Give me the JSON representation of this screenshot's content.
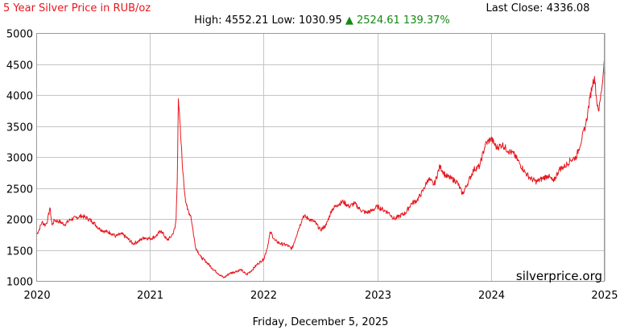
{
  "chart_data": {
    "type": "line",
    "title": "5 Year Silver Price in RUB/oz",
    "summary": {
      "high_label": "High:",
      "high": "4552.21",
      "low_label": "Low:",
      "low": "1030.95",
      "change_arrow": "▲",
      "change": "2524.61",
      "change_pct": "139.37%",
      "last_close_label": "Last Close:",
      "last_close": "4336.08"
    },
    "watermark": "silverprice.org",
    "date_label": "Friday, December 5, 2025",
    "xlim": [
      2020,
      2025
    ],
    "ylim": [
      1000,
      5000
    ],
    "x_ticks": [
      "2020",
      "2021",
      "2022",
      "2023",
      "2024",
      "2025"
    ],
    "y_ticks": [
      "1000",
      "1500",
      "2000",
      "2500",
      "3000",
      "3500",
      "4000",
      "4500",
      "5000"
    ],
    "grid": true,
    "line_color": "#e8161e",
    "series": [
      {
        "x": [
          2020.0,
          2020.02,
          2020.05,
          2020.08,
          2020.1,
          2020.12,
          2020.14,
          2020.16,
          2020.2,
          2020.25,
          2020.3,
          2020.35,
          2020.4,
          2020.45,
          2020.5,
          2020.55,
          2020.6,
          2020.65,
          2020.7,
          2020.75,
          2020.8,
          2020.85,
          2020.9,
          2020.95,
          2021.0,
          2021.05,
          2021.1,
          2021.15,
          2021.18,
          2021.2,
          2021.22,
          2021.23,
          2021.24,
          2021.25,
          2021.27,
          2021.29,
          2021.31,
          2021.33,
          2021.36,
          2021.38,
          2021.4,
          2021.45,
          2021.5,
          2021.55,
          2021.6,
          2021.65,
          2021.7,
          2021.75,
          2021.8,
          2021.85,
          2021.9,
          2021.95,
          2022.0,
          2022.03,
          2022.06,
          2022.1,
          2022.15,
          2022.2,
          2022.25,
          2022.3,
          2022.35,
          2022.4,
          2022.45,
          2022.5,
          2022.55,
          2022.6,
          2022.65,
          2022.7,
          2022.75,
          2022.8,
          2022.85,
          2022.9,
          2022.95,
          2023.0,
          2023.05,
          2023.1,
          2023.15,
          2023.2,
          2023.25,
          2023.3,
          2023.35,
          2023.4,
          2023.45,
          2023.5,
          2023.55,
          2023.6,
          2023.65,
          2023.7,
          2023.75,
          2023.8,
          2023.85,
          2023.9,
          2023.95,
          2024.0,
          2024.05,
          2024.1,
          2024.15,
          2024.2,
          2024.25,
          2024.3,
          2024.35,
          2024.4,
          2024.45,
          2024.5,
          2024.55,
          2024.6,
          2024.65,
          2024.7,
          2024.75,
          2024.8,
          2024.83,
          2024.85,
          2024.87,
          2024.89,
          2024.91,
          2024.93,
          2024.95,
          2024.97,
          2024.985,
          2024.995,
          2025.0
        ],
        "y": [
          1760,
          1800,
          1950,
          1900,
          1980,
          2180,
          1900,
          1980,
          1960,
          1910,
          1990,
          2020,
          2050,
          2010,
          1950,
          1850,
          1800,
          1780,
          1720,
          1760,
          1690,
          1600,
          1640,
          1700,
          1680,
          1720,
          1810,
          1660,
          1700,
          1760,
          1850,
          2000,
          2600,
          3940,
          3350,
          2750,
          2350,
          2150,
          2050,
          1800,
          1550,
          1380,
          1300,
          1200,
          1120,
          1050,
          1120,
          1150,
          1180,
          1100,
          1180,
          1280,
          1350,
          1520,
          1790,
          1650,
          1600,
          1580,
          1520,
          1800,
          2050,
          2000,
          1950,
          1820,
          1900,
          2150,
          2230,
          2280,
          2200,
          2250,
          2150,
          2100,
          2130,
          2200,
          2150,
          2100,
          2000,
          2050,
          2100,
          2250,
          2300,
          2450,
          2650,
          2550,
          2850,
          2700,
          2650,
          2600,
          2400,
          2600,
          2800,
          2850,
          3200,
          3300,
          3150,
          3200,
          3100,
          3050,
          2900,
          2750,
          2650,
          2600,
          2650,
          2700,
          2600,
          2800,
          2850,
          2950,
          3000,
          3300,
          3500,
          3700,
          3950,
          4150,
          4300,
          3900,
          3750,
          4050,
          4300,
          4550,
          4340
        ]
      }
    ]
  }
}
